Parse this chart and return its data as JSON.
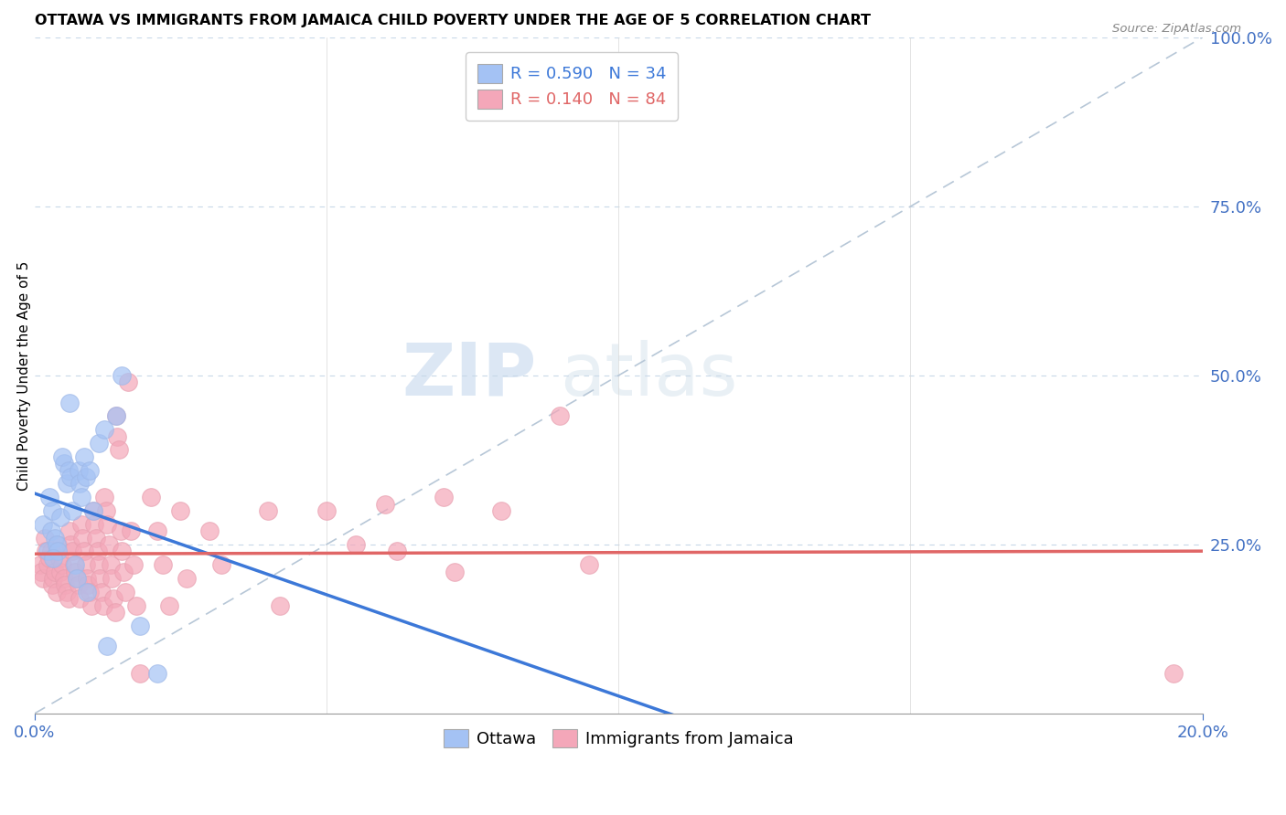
{
  "title": "OTTAWA VS IMMIGRANTS FROM JAMAICA CHILD POVERTY UNDER THE AGE OF 5 CORRELATION CHART",
  "source": "Source: ZipAtlas.com",
  "ylabel": "Child Poverty Under the Age of 5",
  "watermark_zip": "ZIP",
  "watermark_atlas": "atlas",
  "legend_ottawa": "R = 0.590   N = 34",
  "legend_jamaica": "R = 0.140   N = 84",
  "legend_label_ottawa": "Ottawa",
  "legend_label_jamaica": "Immigrants from Jamaica",
  "ottawa_color": "#a4c2f4",
  "jamaica_color": "#f4a7b9",
  "ottawa_line_color": "#3c78d8",
  "jamaica_line_color": "#e06666",
  "ref_line_color": "#b7c7d7",
  "background_color": "#ffffff",
  "xlim": [
    0,
    20.0
  ],
  "ylim": [
    0,
    1.0
  ],
  "ottawa_points": [
    [
      0.15,
      0.28
    ],
    [
      0.25,
      0.32
    ],
    [
      0.3,
      0.3
    ],
    [
      0.28,
      0.27
    ],
    [
      0.22,
      0.24
    ],
    [
      0.35,
      0.26
    ],
    [
      0.38,
      0.25
    ],
    [
      0.4,
      0.24
    ],
    [
      0.32,
      0.23
    ],
    [
      0.45,
      0.29
    ],
    [
      0.5,
      0.37
    ],
    [
      0.48,
      0.38
    ],
    [
      0.55,
      0.34
    ],
    [
      0.6,
      0.46
    ],
    [
      0.58,
      0.36
    ],
    [
      0.62,
      0.35
    ],
    [
      0.65,
      0.3
    ],
    [
      0.7,
      0.22
    ],
    [
      0.72,
      0.2
    ],
    [
      0.75,
      0.36
    ],
    [
      0.78,
      0.34
    ],
    [
      0.8,
      0.32
    ],
    [
      0.85,
      0.38
    ],
    [
      0.88,
      0.35
    ],
    [
      0.9,
      0.18
    ],
    [
      0.95,
      0.36
    ],
    [
      1.0,
      0.3
    ],
    [
      1.1,
      0.4
    ],
    [
      1.2,
      0.42
    ],
    [
      1.25,
      0.1
    ],
    [
      1.4,
      0.44
    ],
    [
      1.5,
      0.5
    ],
    [
      1.8,
      0.13
    ],
    [
      2.1,
      0.06
    ]
  ],
  "jamaica_points": [
    [
      0.1,
      0.22
    ],
    [
      0.12,
      0.21
    ],
    [
      0.14,
      0.2
    ],
    [
      0.18,
      0.26
    ],
    [
      0.2,
      0.24
    ],
    [
      0.22,
      0.22
    ],
    [
      0.25,
      0.23
    ],
    [
      0.28,
      0.24
    ],
    [
      0.3,
      0.19
    ],
    [
      0.32,
      0.2
    ],
    [
      0.35,
      0.21
    ],
    [
      0.38,
      0.18
    ],
    [
      0.4,
      0.25
    ],
    [
      0.42,
      0.23
    ],
    [
      0.45,
      0.21
    ],
    [
      0.48,
      0.22
    ],
    [
      0.5,
      0.2
    ],
    [
      0.52,
      0.19
    ],
    [
      0.55,
      0.18
    ],
    [
      0.58,
      0.17
    ],
    [
      0.6,
      0.27
    ],
    [
      0.62,
      0.25
    ],
    [
      0.65,
      0.24
    ],
    [
      0.68,
      0.22
    ],
    [
      0.7,
      0.21
    ],
    [
      0.72,
      0.2
    ],
    [
      0.75,
      0.19
    ],
    [
      0.78,
      0.17
    ],
    [
      0.8,
      0.28
    ],
    [
      0.82,
      0.26
    ],
    [
      0.85,
      0.24
    ],
    [
      0.88,
      0.22
    ],
    [
      0.9,
      0.2
    ],
    [
      0.92,
      0.19
    ],
    [
      0.95,
      0.18
    ],
    [
      0.98,
      0.16
    ],
    [
      1.0,
      0.3
    ],
    [
      1.02,
      0.28
    ],
    [
      1.05,
      0.26
    ],
    [
      1.08,
      0.24
    ],
    [
      1.1,
      0.22
    ],
    [
      1.12,
      0.2
    ],
    [
      1.15,
      0.18
    ],
    [
      1.18,
      0.16
    ],
    [
      1.2,
      0.32
    ],
    [
      1.22,
      0.3
    ],
    [
      1.25,
      0.28
    ],
    [
      1.28,
      0.25
    ],
    [
      1.3,
      0.22
    ],
    [
      1.32,
      0.2
    ],
    [
      1.35,
      0.17
    ],
    [
      1.38,
      0.15
    ],
    [
      1.4,
      0.44
    ],
    [
      1.42,
      0.41
    ],
    [
      1.45,
      0.39
    ],
    [
      1.48,
      0.27
    ],
    [
      1.5,
      0.24
    ],
    [
      1.52,
      0.21
    ],
    [
      1.55,
      0.18
    ],
    [
      1.6,
      0.49
    ],
    [
      1.65,
      0.27
    ],
    [
      1.7,
      0.22
    ],
    [
      1.75,
      0.16
    ],
    [
      1.8,
      0.06
    ],
    [
      2.0,
      0.32
    ],
    [
      2.1,
      0.27
    ],
    [
      2.2,
      0.22
    ],
    [
      2.3,
      0.16
    ],
    [
      2.5,
      0.3
    ],
    [
      2.6,
      0.2
    ],
    [
      3.0,
      0.27
    ],
    [
      3.2,
      0.22
    ],
    [
      4.0,
      0.3
    ],
    [
      4.2,
      0.16
    ],
    [
      5.0,
      0.3
    ],
    [
      5.5,
      0.25
    ],
    [
      6.0,
      0.31
    ],
    [
      6.2,
      0.24
    ],
    [
      7.0,
      0.32
    ],
    [
      7.2,
      0.21
    ],
    [
      8.0,
      0.3
    ],
    [
      9.0,
      0.44
    ],
    [
      9.5,
      0.22
    ],
    [
      19.5,
      0.06
    ]
  ]
}
